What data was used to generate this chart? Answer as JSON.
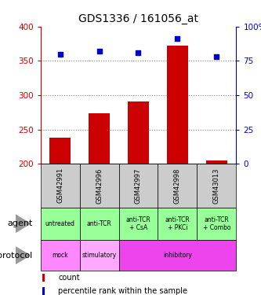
{
  "title": "GDS1336 / 161056_at",
  "samples": [
    "GSM42991",
    "GSM42996",
    "GSM42997",
    "GSM42998",
    "GSM43013"
  ],
  "count_values": [
    238,
    273,
    291,
    372,
    205
  ],
  "percentile_values": [
    80,
    82,
    81,
    91,
    78
  ],
  "count_base": 200,
  "ylim_left": [
    200,
    400
  ],
  "ylim_right": [
    0,
    100
  ],
  "yticks_left": [
    200,
    250,
    300,
    350,
    400
  ],
  "yticks_right": [
    0,
    25,
    50,
    75,
    100
  ],
  "agent_labels": [
    "untreated",
    "anti-TCR",
    "anti-TCR\n+ CsA",
    "anti-TCR\n+ PKCi",
    "anti-TCR\n+ Combo"
  ],
  "agent_color": "#99ff99",
  "protocol_specs": [
    [
      "mock",
      1,
      "#ff88ff"
    ],
    [
      "stimulatory",
      1,
      "#ffaaff"
    ],
    [
      "inhibitory",
      3,
      "#ee44ee"
    ]
  ],
  "sample_bg_color": "#cccccc",
  "bar_color": "#cc0000",
  "dot_color": "#0000cc",
  "left_axis_color": "#cc0000",
  "right_axis_color": "#0000cc",
  "grid_color": "#888888",
  "title_fontsize": 10
}
